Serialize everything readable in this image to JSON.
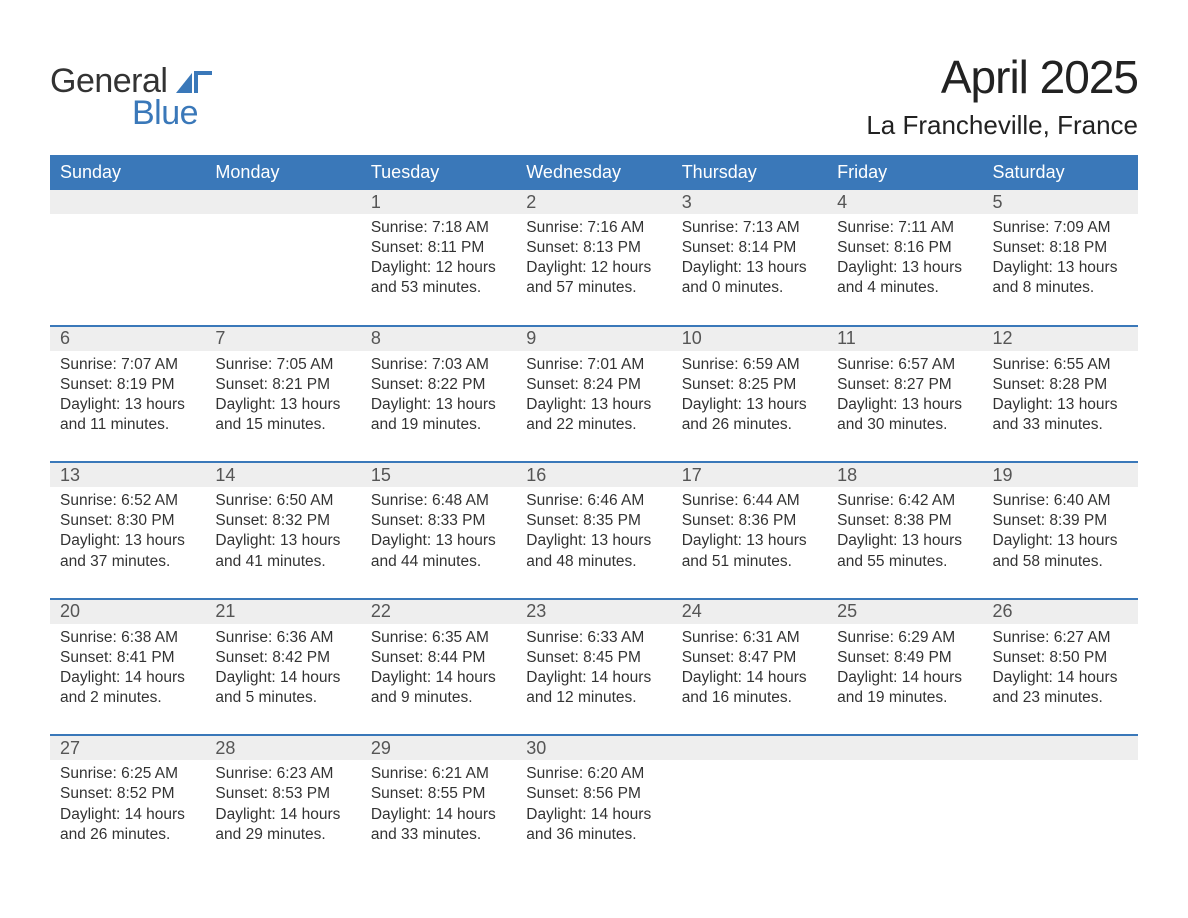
{
  "logo": {
    "general": "General",
    "blue": "Blue",
    "flag_color": "#3a78b9"
  },
  "title": "April 2025",
  "location": "La Francheville, France",
  "colors": {
    "header_bg": "#3a78b9",
    "header_text": "#ffffff",
    "date_bar_bg": "#eeeeee",
    "text": "#333333",
    "week_divider": "#3a78b9"
  },
  "dayHeaders": [
    "Sunday",
    "Monday",
    "Tuesday",
    "Wednesday",
    "Thursday",
    "Friday",
    "Saturday"
  ],
  "labels": {
    "sunrise": "Sunrise:",
    "sunset": "Sunset:",
    "daylight": "Daylight:"
  },
  "weeks": [
    [
      {
        "date": "",
        "sunrise": "",
        "sunset": "",
        "daylight": ""
      },
      {
        "date": "",
        "sunrise": "",
        "sunset": "",
        "daylight": ""
      },
      {
        "date": "1",
        "sunrise": "7:18 AM",
        "sunset": "8:11 PM",
        "daylight": "12 hours and 53 minutes."
      },
      {
        "date": "2",
        "sunrise": "7:16 AM",
        "sunset": "8:13 PM",
        "daylight": "12 hours and 57 minutes."
      },
      {
        "date": "3",
        "sunrise": "7:13 AM",
        "sunset": "8:14 PM",
        "daylight": "13 hours and 0 minutes."
      },
      {
        "date": "4",
        "sunrise": "7:11 AM",
        "sunset": "8:16 PM",
        "daylight": "13 hours and 4 minutes."
      },
      {
        "date": "5",
        "sunrise": "7:09 AM",
        "sunset": "8:18 PM",
        "daylight": "13 hours and 8 minutes."
      }
    ],
    [
      {
        "date": "6",
        "sunrise": "7:07 AM",
        "sunset": "8:19 PM",
        "daylight": "13 hours and 11 minutes."
      },
      {
        "date": "7",
        "sunrise": "7:05 AM",
        "sunset": "8:21 PM",
        "daylight": "13 hours and 15 minutes."
      },
      {
        "date": "8",
        "sunrise": "7:03 AM",
        "sunset": "8:22 PM",
        "daylight": "13 hours and 19 minutes."
      },
      {
        "date": "9",
        "sunrise": "7:01 AM",
        "sunset": "8:24 PM",
        "daylight": "13 hours and 22 minutes."
      },
      {
        "date": "10",
        "sunrise": "6:59 AM",
        "sunset": "8:25 PM",
        "daylight": "13 hours and 26 minutes."
      },
      {
        "date": "11",
        "sunrise": "6:57 AM",
        "sunset": "8:27 PM",
        "daylight": "13 hours and 30 minutes."
      },
      {
        "date": "12",
        "sunrise": "6:55 AM",
        "sunset": "8:28 PM",
        "daylight": "13 hours and 33 minutes."
      }
    ],
    [
      {
        "date": "13",
        "sunrise": "6:52 AM",
        "sunset": "8:30 PM",
        "daylight": "13 hours and 37 minutes."
      },
      {
        "date": "14",
        "sunrise": "6:50 AM",
        "sunset": "8:32 PM",
        "daylight": "13 hours and 41 minutes."
      },
      {
        "date": "15",
        "sunrise": "6:48 AM",
        "sunset": "8:33 PM",
        "daylight": "13 hours and 44 minutes."
      },
      {
        "date": "16",
        "sunrise": "6:46 AM",
        "sunset": "8:35 PM",
        "daylight": "13 hours and 48 minutes."
      },
      {
        "date": "17",
        "sunrise": "6:44 AM",
        "sunset": "8:36 PM",
        "daylight": "13 hours and 51 minutes."
      },
      {
        "date": "18",
        "sunrise": "6:42 AM",
        "sunset": "8:38 PM",
        "daylight": "13 hours and 55 minutes."
      },
      {
        "date": "19",
        "sunrise": "6:40 AM",
        "sunset": "8:39 PM",
        "daylight": "13 hours and 58 minutes."
      }
    ],
    [
      {
        "date": "20",
        "sunrise": "6:38 AM",
        "sunset": "8:41 PM",
        "daylight": "14 hours and 2 minutes."
      },
      {
        "date": "21",
        "sunrise": "6:36 AM",
        "sunset": "8:42 PM",
        "daylight": "14 hours and 5 minutes."
      },
      {
        "date": "22",
        "sunrise": "6:35 AM",
        "sunset": "8:44 PM",
        "daylight": "14 hours and 9 minutes."
      },
      {
        "date": "23",
        "sunrise": "6:33 AM",
        "sunset": "8:45 PM",
        "daylight": "14 hours and 12 minutes."
      },
      {
        "date": "24",
        "sunrise": "6:31 AM",
        "sunset": "8:47 PM",
        "daylight": "14 hours and 16 minutes."
      },
      {
        "date": "25",
        "sunrise": "6:29 AM",
        "sunset": "8:49 PM",
        "daylight": "14 hours and 19 minutes."
      },
      {
        "date": "26",
        "sunrise": "6:27 AM",
        "sunset": "8:50 PM",
        "daylight": "14 hours and 23 minutes."
      }
    ],
    [
      {
        "date": "27",
        "sunrise": "6:25 AM",
        "sunset": "8:52 PM",
        "daylight": "14 hours and 26 minutes."
      },
      {
        "date": "28",
        "sunrise": "6:23 AM",
        "sunset": "8:53 PM",
        "daylight": "14 hours and 29 minutes."
      },
      {
        "date": "29",
        "sunrise": "6:21 AM",
        "sunset": "8:55 PM",
        "daylight": "14 hours and 33 minutes."
      },
      {
        "date": "30",
        "sunrise": "6:20 AM",
        "sunset": "8:56 PM",
        "daylight": "14 hours and 36 minutes."
      },
      {
        "date": "",
        "sunrise": "",
        "sunset": "",
        "daylight": ""
      },
      {
        "date": "",
        "sunrise": "",
        "sunset": "",
        "daylight": ""
      },
      {
        "date": "",
        "sunrise": "",
        "sunset": "",
        "daylight": ""
      }
    ]
  ]
}
